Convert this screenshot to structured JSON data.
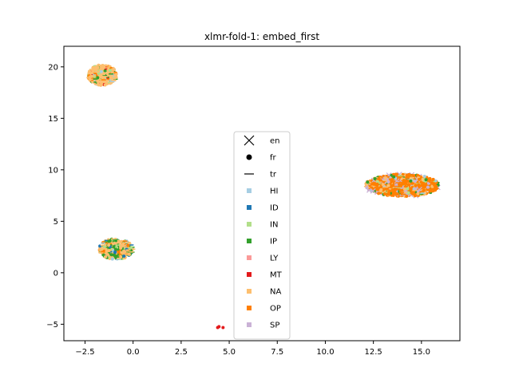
{
  "chart_data": {
    "type": "scatter",
    "title": "xlmr-fold-1: embed_first",
    "xlabel": "",
    "ylabel": "",
    "xlim": [
      -3.6,
      17.0
    ],
    "ylim": [
      -6.6,
      22.0
    ],
    "x_ticks": [
      -2.5,
      0.0,
      2.5,
      5.0,
      7.5,
      10.0,
      12.5,
      15.0
    ],
    "x_tick_labels": [
      "−2.5",
      "0.0",
      "2.5",
      "5.0",
      "7.5",
      "10.0",
      "12.5",
      "15.0"
    ],
    "y_ticks": [
      -5,
      0,
      5,
      10,
      15,
      20
    ],
    "y_tick_labels": [
      "−5",
      "0",
      "5",
      "10",
      "15",
      "20"
    ],
    "grid": false,
    "legend_position": "center",
    "marker_legend": [
      {
        "label": "en",
        "marker": "x"
      },
      {
        "label": "fr",
        "marker": "o"
      },
      {
        "label": "tr",
        "marker": "_"
      }
    ],
    "categories": [
      {
        "label": "HI",
        "color": "#a6cee3"
      },
      {
        "label": "ID",
        "color": "#1f78b4"
      },
      {
        "label": "IN",
        "color": "#b2df8a"
      },
      {
        "label": "IP",
        "color": "#33a02c"
      },
      {
        "label": "LY",
        "color": "#fb9a99"
      },
      {
        "label": "MT",
        "color": "#e31a1c"
      },
      {
        "label": "NA",
        "color": "#fdbf6f"
      },
      {
        "label": "OP",
        "color": "#ff7f00"
      },
      {
        "label": "SP",
        "color": "#cab2d6"
      }
    ],
    "clusters": [
      {
        "center": [
          -1.6,
          19.2
        ],
        "spread": [
          0.75,
          1.0
        ],
        "composition": {
          "NA": 0.65,
          "OP": 0.12,
          "IP": 0.1,
          "MT": 0.05,
          "IN": 0.05,
          "HI": 0.03
        }
      },
      {
        "center": [
          -0.9,
          2.3
        ],
        "spread": [
          0.9,
          1.0
        ],
        "composition": {
          "NA": 0.4,
          "IP": 0.3,
          "OP": 0.12,
          "ID": 0.07,
          "IN": 0.06,
          "HI": 0.05
        }
      },
      {
        "center": [
          14.0,
          8.5
        ],
        "spread": [
          1.9,
          1.1
        ],
        "composition": {
          "OP": 0.55,
          "NA": 0.2,
          "SP": 0.12,
          "IN": 0.07,
          "IP": 0.04,
          "HI": 0.02
        }
      },
      {
        "center": [
          4.5,
          -5.3
        ],
        "spread": [
          0.3,
          0.1
        ],
        "composition": {
          "MT": 1.0
        }
      }
    ]
  }
}
